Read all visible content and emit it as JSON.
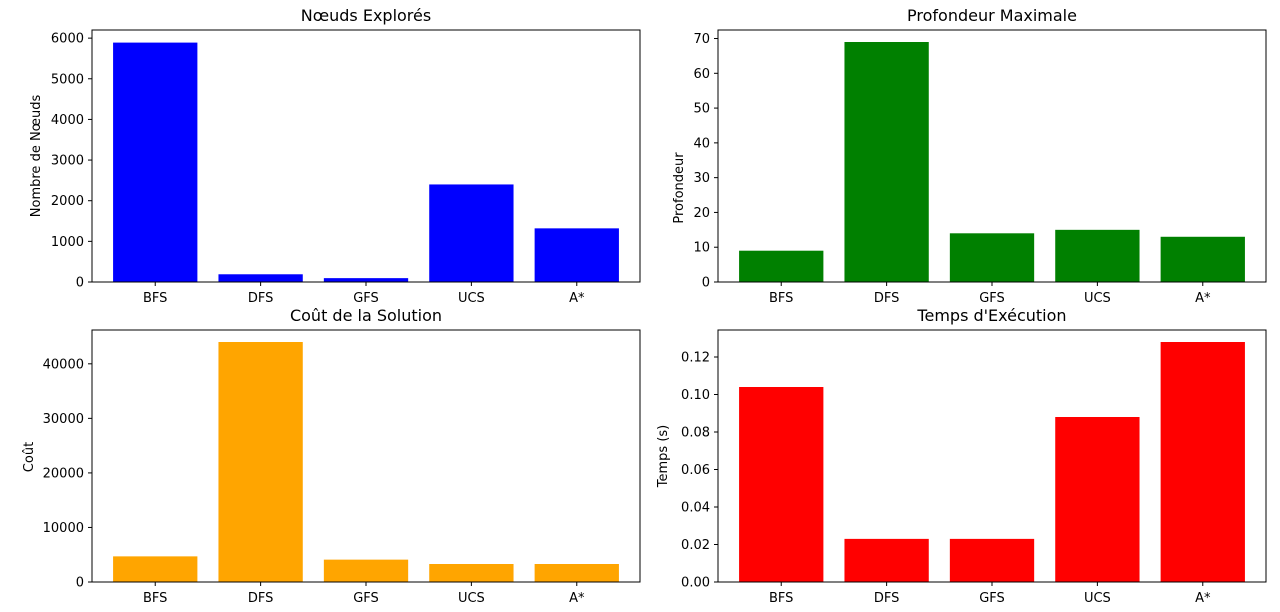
{
  "chart_data": [
    {
      "type": "bar",
      "title": "Nœuds Explorés",
      "xlabel": "",
      "ylabel": "Nombre de Nœuds",
      "categories": [
        "BFS",
        "DFS",
        "GFS",
        "UCS",
        "A*"
      ],
      "values": [
        5890,
        190,
        95,
        2400,
        1320
      ],
      "ylim": [
        0,
        6200
      ],
      "yticks": [
        0,
        1000,
        2000,
        3000,
        4000,
        5000,
        6000
      ],
      "ytick_labels": [
        "0",
        "1000",
        "2000",
        "3000",
        "4000",
        "5000",
        "6000"
      ],
      "color": "#0000ff",
      "grid": false
    },
    {
      "type": "bar",
      "title": "Profondeur Maximale",
      "xlabel": "",
      "ylabel": "Profondeur",
      "categories": [
        "BFS",
        "DFS",
        "GFS",
        "UCS",
        "A*"
      ],
      "values": [
        9,
        69,
        14,
        15,
        13
      ],
      "ylim": [
        0,
        72.45
      ],
      "yticks": [
        0,
        10,
        20,
        30,
        40,
        50,
        60,
        70
      ],
      "ytick_labels": [
        "0",
        "10",
        "20",
        "30",
        "40",
        "50",
        "60",
        "70"
      ],
      "color": "#008000",
      "grid": false
    },
    {
      "type": "bar",
      "title": "Coût de la Solution",
      "xlabel": "",
      "ylabel": "Coût",
      "categories": [
        "BFS",
        "DFS",
        "GFS",
        "UCS",
        "A*"
      ],
      "values": [
        4700,
        44000,
        4100,
        3300,
        3300
      ],
      "ylim": [
        0,
        46200
      ],
      "yticks": [
        0,
        10000,
        20000,
        30000,
        40000
      ],
      "ytick_labels": [
        "0",
        "10000",
        "20000",
        "30000",
        "40000"
      ],
      "color": "#ffa500",
      "grid": false
    },
    {
      "type": "bar",
      "title": "Temps d'Exécution",
      "xlabel": "",
      "ylabel": "Temps (s)",
      "categories": [
        "BFS",
        "DFS",
        "GFS",
        "UCS",
        "A*"
      ],
      "values": [
        0.104,
        0.023,
        0.023,
        0.088,
        0.128
      ],
      "ylim": [
        0,
        0.1344
      ],
      "yticks": [
        0,
        0.02,
        0.04,
        0.06,
        0.08,
        0.1,
        0.12
      ],
      "ytick_labels": [
        "0.00",
        "0.02",
        "0.04",
        "0.06",
        "0.08",
        "0.10",
        "0.12"
      ],
      "color": "#ff0000",
      "grid": false
    }
  ]
}
